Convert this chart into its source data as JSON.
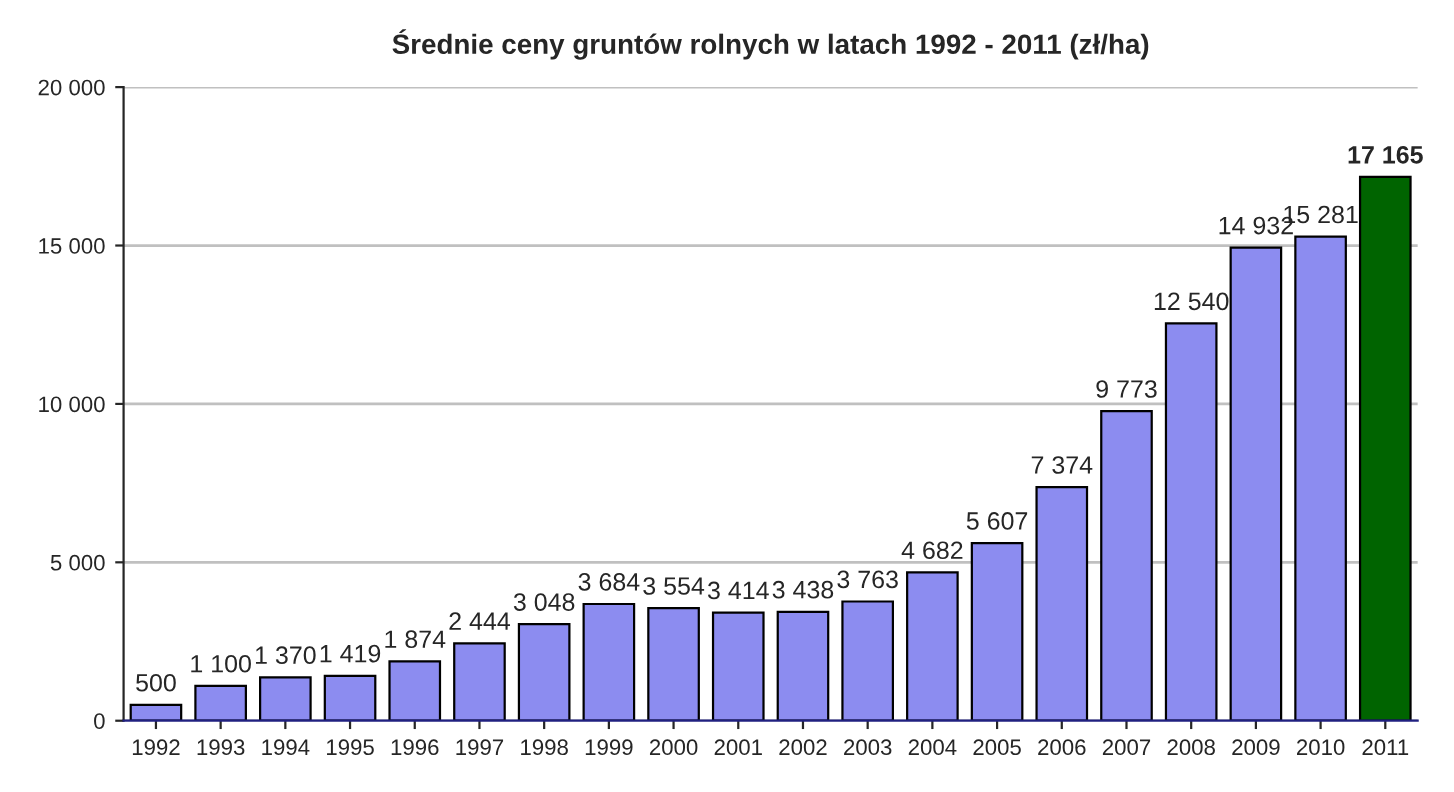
{
  "chart_data": {
    "type": "bar",
    "title": "Średnie ceny gruntów rolnych w latach 1992 - 2011 (zł/ha)",
    "categories": [
      "1992",
      "1993",
      "1994",
      "1995",
      "1996",
      "1997",
      "1998",
      "1999",
      "2000",
      "2001",
      "2002",
      "2003",
      "2004",
      "2005",
      "2006",
      "2007",
      "2008",
      "2009",
      "2010",
      "2011"
    ],
    "values": [
      500,
      1100,
      1370,
      1419,
      1874,
      2444,
      3048,
      3684,
      3554,
      3414,
      3438,
      3763,
      4682,
      5607,
      7374,
      9773,
      12540,
      14932,
      15281,
      17165
    ],
    "value_labels": [
      "500",
      "1 100",
      "1 370",
      "1 419",
      "1 874",
      "2 444",
      "3 048",
      "3 684",
      "3 554",
      "3 414",
      "3 438",
      "3 763",
      "4 682",
      "5 607",
      "7 374",
      "9 773",
      "12 540",
      "14 932",
      "15 281",
      "17 165"
    ],
    "colors": [
      "#8c8cf0",
      "#8c8cf0",
      "#8c8cf0",
      "#8c8cf0",
      "#8c8cf0",
      "#8c8cf0",
      "#8c8cf0",
      "#8c8cf0",
      "#8c8cf0",
      "#8c8cf0",
      "#8c8cf0",
      "#8c8cf0",
      "#8c8cf0",
      "#8c8cf0",
      "#8c8cf0",
      "#8c8cf0",
      "#8c8cf0",
      "#8c8cf0",
      "#8c8cf0",
      "#006400"
    ],
    "ylim": [
      0,
      20000
    ],
    "yticks": [
      {
        "value": 0,
        "label": "0"
      },
      {
        "value": 5000,
        "label": "5 000"
      },
      {
        "value": 10000,
        "label": "10 000"
      },
      {
        "value": 15000,
        "label": "15 000"
      },
      {
        "value": 20000,
        "label": "20 000"
      }
    ],
    "grid": "y"
  }
}
